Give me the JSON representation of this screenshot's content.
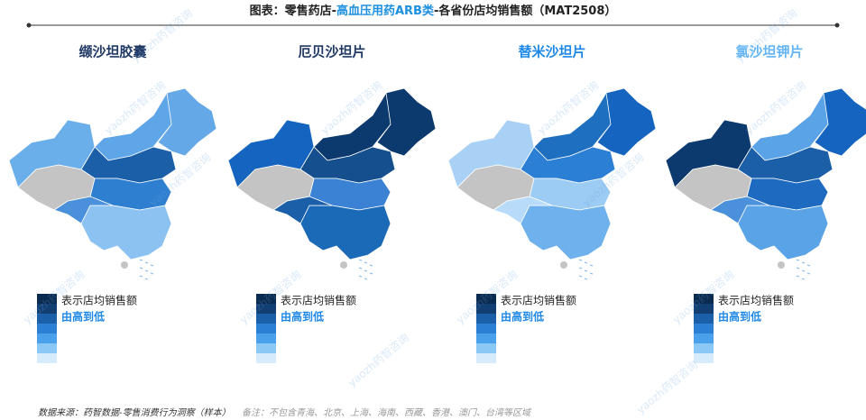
{
  "title": {
    "prefix": "图表：零售药店-",
    "highlight": "高血压用药ARB类",
    "suffix": "-各省份店均销售额（MAT2508）"
  },
  "maps": [
    {
      "title": "缬沙坦胶囊"
    },
    {
      "title": "厄贝沙坦片"
    },
    {
      "title": "替米沙坦片"
    },
    {
      "title": "氯沙坦钾片"
    }
  ],
  "legend": {
    "line1": "表示店均销售额",
    "line2": "由高到低"
  },
  "footer": {
    "source": "数据来源：药智数据-零售消费行为洞察（样本）",
    "note": "备注：不包含青海、北京、上海、海南、西藏、香港、澳门、台湾等区域"
  },
  "watermark": "yaozh药智咨询"
}
